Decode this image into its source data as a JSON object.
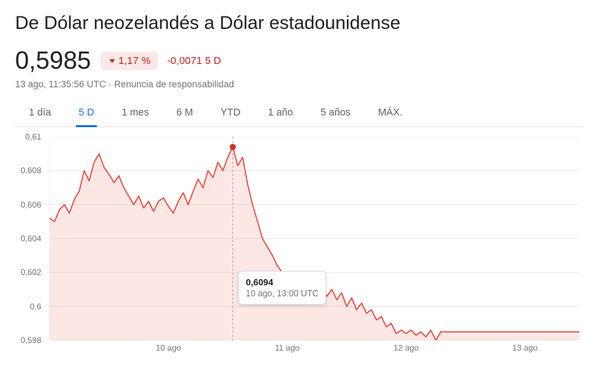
{
  "title": "De Dólar neozelandés a Dólar estadounidense",
  "rate": "0,5985",
  "change_pct": "1,17 %",
  "change_abs": "-0,0071",
  "change_period": "5 D",
  "change_direction": "down",
  "change_color": "#c5221f",
  "change_badge_bg": "#fce8e6",
  "timestamp": "13 ago, 11:35:56 UTC",
  "separator": " · ",
  "disclaimer": "Renuncia de responsabilidad",
  "tabs": [
    {
      "label": "1 día",
      "active": false
    },
    {
      "label": "5 D",
      "active": true
    },
    {
      "label": "1 mes",
      "active": false
    },
    {
      "label": "6 M",
      "active": false
    },
    {
      "label": "YTD",
      "active": false
    },
    {
      "label": "1 año",
      "active": false
    },
    {
      "label": "5 años",
      "active": false
    },
    {
      "label": "MÁX.",
      "active": false
    }
  ],
  "tooltip": {
    "value": "0,6094",
    "time": "10 ago, 13:00 UTC",
    "highlight_index": 37
  },
  "chart": {
    "type": "line-area",
    "line_color": "#ea4335",
    "fill_color": "rgba(234,67,53,0.13)",
    "marker_color": "#d93025",
    "grid_color": "#e8e8e8",
    "hover_line_color": "#9aa0a6",
    "background_color": "#ffffff",
    "line_width": 1.6,
    "marker_radius": 4.5,
    "ylim": [
      0.598,
      0.61
    ],
    "yticks": [
      0.598,
      0.6,
      0.602,
      0.604,
      0.606,
      0.608,
      0.61
    ],
    "ytick_labels": [
      "0,598",
      "0,6",
      "0,602",
      "0,604",
      "0,606",
      "0,608",
      "0,61"
    ],
    "xticks": [
      24,
      48,
      72,
      96
    ],
    "xtick_labels": [
      "10 ago",
      "11 ago",
      "12 ago",
      "13 ago"
    ],
    "x_count": 108,
    "values": [
      0.6052,
      0.605,
      0.6057,
      0.606,
      0.6055,
      0.6063,
      0.6068,
      0.608,
      0.6074,
      0.6085,
      0.609,
      0.6082,
      0.6078,
      0.6073,
      0.6077,
      0.607,
      0.6065,
      0.606,
      0.6065,
      0.6058,
      0.6062,
      0.6056,
      0.6062,
      0.6064,
      0.6059,
      0.6055,
      0.6062,
      0.6067,
      0.606,
      0.6068,
      0.6075,
      0.607,
      0.608,
      0.6076,
      0.6085,
      0.608,
      0.6088,
      0.6094,
      0.6083,
      0.6088,
      0.6072,
      0.606,
      0.605,
      0.604,
      0.6035,
      0.603,
      0.6024,
      0.602,
      0.6018,
      0.6016,
      0.6012,
      0.6015,
      0.601,
      0.6013,
      0.6008,
      0.6012,
      0.6006,
      0.601,
      0.6004,
      0.6008,
      0.6,
      0.6005,
      0.5998,
      0.6002,
      0.5996,
      0.5998,
      0.5992,
      0.5994,
      0.5988,
      0.599,
      0.5984,
      0.5986,
      0.5984,
      0.5986,
      0.5983,
      0.5985,
      0.5982,
      0.5986,
      0.598,
      0.5985,
      0.5985,
      0.5985,
      0.5985,
      0.5985,
      0.5985,
      0.5985,
      0.5985,
      0.5985,
      0.5985,
      0.5985,
      0.5985,
      0.5985,
      0.5985,
      0.5985,
      0.5985,
      0.5985,
      0.5985,
      0.5985,
      0.5985,
      0.5985,
      0.5985,
      0.5985,
      0.5985,
      0.5985,
      0.5985,
      0.5985,
      0.5985,
      0.5985
    ],
    "axis_font_size": 12,
    "axis_color": "#70757a"
  }
}
